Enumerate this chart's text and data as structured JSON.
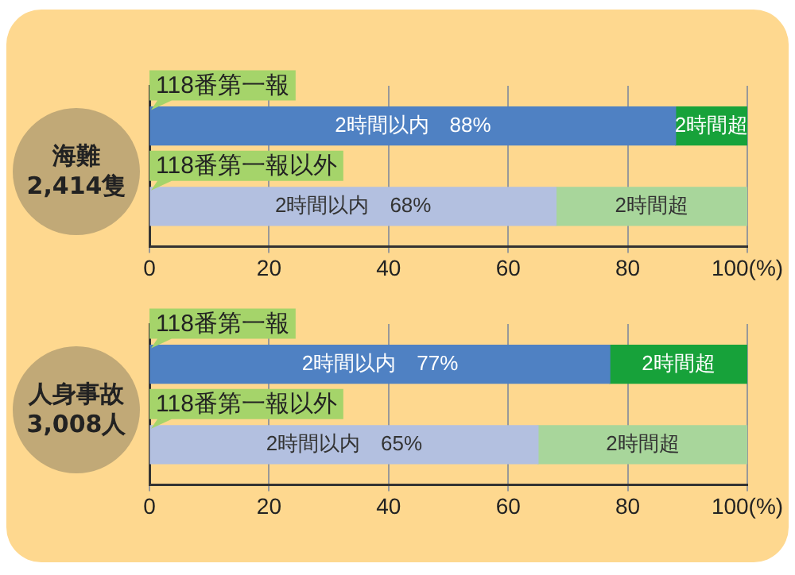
{
  "chart_data": [
    {
      "type": "bar",
      "orientation": "horizontal",
      "stacked": true,
      "ylabel": "海難\n2,414隻",
      "categories": [
        "118番第一報",
        "118番第一報以外"
      ],
      "series": [
        {
          "name": "2時間以内",
          "colors": [
            "#4f81c3",
            "#b3c0e0"
          ],
          "values": [
            88,
            68
          ],
          "value_labels": [
            "88%",
            "68%"
          ]
        },
        {
          "name": "2時間超",
          "colors": [
            "#17a23a",
            "#a8d69b"
          ],
          "values": [
            12,
            32
          ]
        }
      ],
      "xlim": [
        0,
        100
      ],
      "xticks": [
        0,
        20,
        40,
        60,
        80,
        {
          "value": 100,
          "label": "100(%)"
        }
      ],
      "grid": "x",
      "legend": false
    },
    {
      "type": "bar",
      "orientation": "horizontal",
      "stacked": true,
      "ylabel": "人身事故\n3,008人",
      "categories": [
        "118番第一報",
        "118番第一報以外"
      ],
      "series": [
        {
          "name": "2時間以内",
          "colors": [
            "#4f81c3",
            "#b3c0e0"
          ],
          "values": [
            77,
            65
          ],
          "value_labels": [
            "77%",
            "65%"
          ]
        },
        {
          "name": "2時間超",
          "colors": [
            "#17a23a",
            "#a8d69b"
          ],
          "values": [
            23,
            35
          ]
        }
      ],
      "xlim": [
        0,
        100
      ],
      "xticks": [
        0,
        20,
        40,
        60,
        80,
        {
          "value": 100,
          "label": "100(%)"
        }
      ],
      "grid": "x",
      "legend": false
    }
  ]
}
